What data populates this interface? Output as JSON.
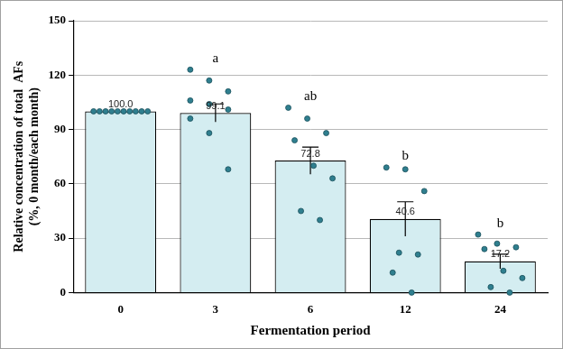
{
  "chart_data": {
    "type": "bar",
    "x_label": "Fermentation period",
    "y_label": [
      "Relative concentration of total  AFs",
      "(%, 0 month/each month)"
    ],
    "categories": [
      "0",
      "3",
      "6",
      "12",
      "24"
    ],
    "values": [
      100,
      99.1,
      72.8,
      40.6,
      17.2
    ],
    "value_labels": [
      "100.0",
      "99.1",
      "72.8",
      "40.6",
      "17.2"
    ],
    "errors": [
      0,
      5,
      7.5,
      9.5,
      4
    ],
    "points": [
      [
        100,
        100,
        100,
        100,
        100,
        100,
        100,
        100,
        100,
        100
      ],
      [
        123,
        117,
        111,
        106,
        104,
        101,
        96,
        88,
        68
      ],
      [
        102,
        96,
        88,
        84,
        70,
        63,
        45,
        40
      ],
      [
        69,
        68,
        56,
        22,
        21,
        11,
        0
      ],
      [
        32,
        27,
        25,
        24,
        12,
        8,
        3,
        0
      ]
    ],
    "significance_letters": [
      null,
      "a",
      "ab",
      "b",
      "b"
    ],
    "color": "#d4edf1",
    "data_labels": true,
    "ylim": [
      0,
      150
    ],
    "yticks": [
      0,
      30,
      60,
      90,
      120,
      150
    ],
    "grid": true
  }
}
